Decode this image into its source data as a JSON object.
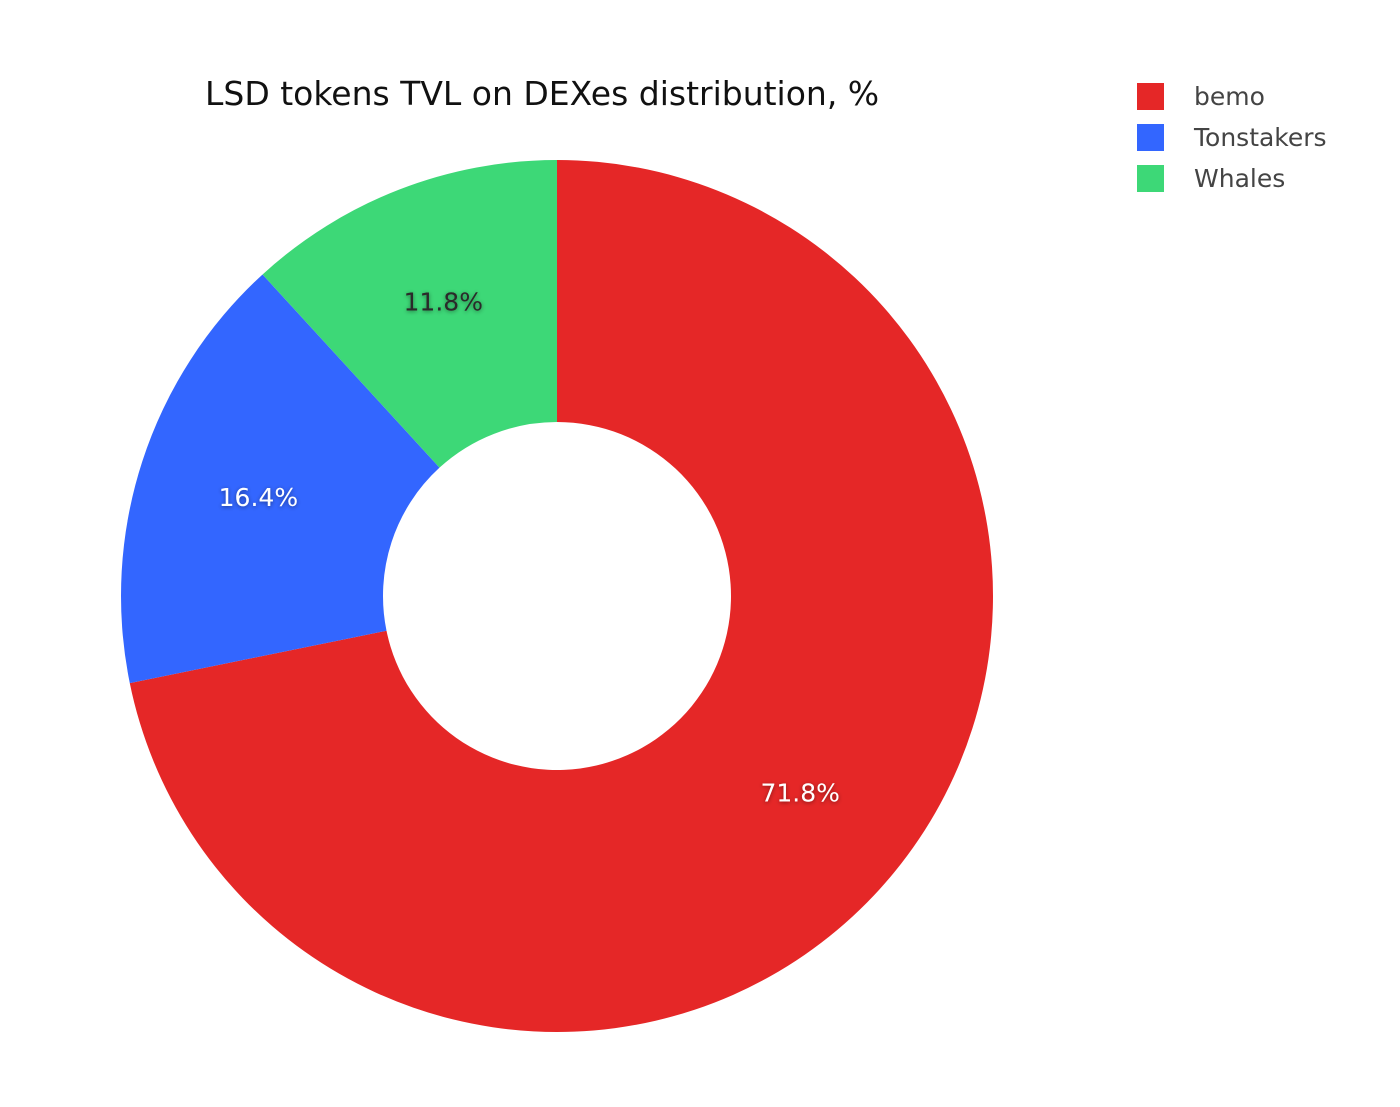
{
  "chart_data": {
    "type": "pie",
    "title": "LSD tokens TVL on DEXes distribution, %",
    "labels": [
      "bemo",
      "Tonstakers",
      "Whales"
    ],
    "values": [
      71.8,
      16.4,
      11.8
    ],
    "value_labels": [
      "71.8%",
      "16.4%",
      "11.8%"
    ],
    "colors": [
      "#e52727",
      "#3366ff",
      "#3dd877"
    ],
    "hole": true,
    "legend_position": "top-right"
  }
}
